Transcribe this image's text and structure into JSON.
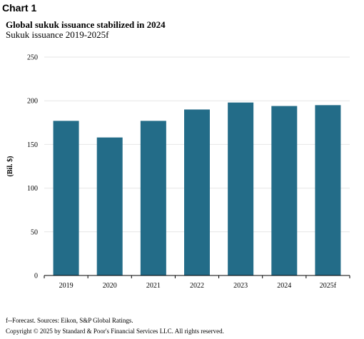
{
  "chart_label": "Chart 1",
  "footnote": "f--Forecast. Sources: Eikon, S&P Global Ratings.",
  "copyright": "Copyright © 2025 by Standard & Poor's Financial Services LLC. All rights reserved.",
  "chart_data": {
    "type": "bar",
    "title": "Global sukuk issuance stabilized in 2024",
    "subtitle": "Sukuk issuance 2019-2025f",
    "xlabel": "",
    "ylabel": "(Bil. $)",
    "categories": [
      "2019",
      "2020",
      "2021",
      "2022",
      "2023",
      "2024",
      "2025f"
    ],
    "values": [
      177,
      158,
      177,
      190,
      198,
      194,
      195
    ],
    "ylim": [
      0,
      250
    ],
    "yticks": [
      "0",
      "50",
      "100",
      "150",
      "200",
      "250"
    ],
    "grid": true,
    "bar_color": "#236c88"
  }
}
